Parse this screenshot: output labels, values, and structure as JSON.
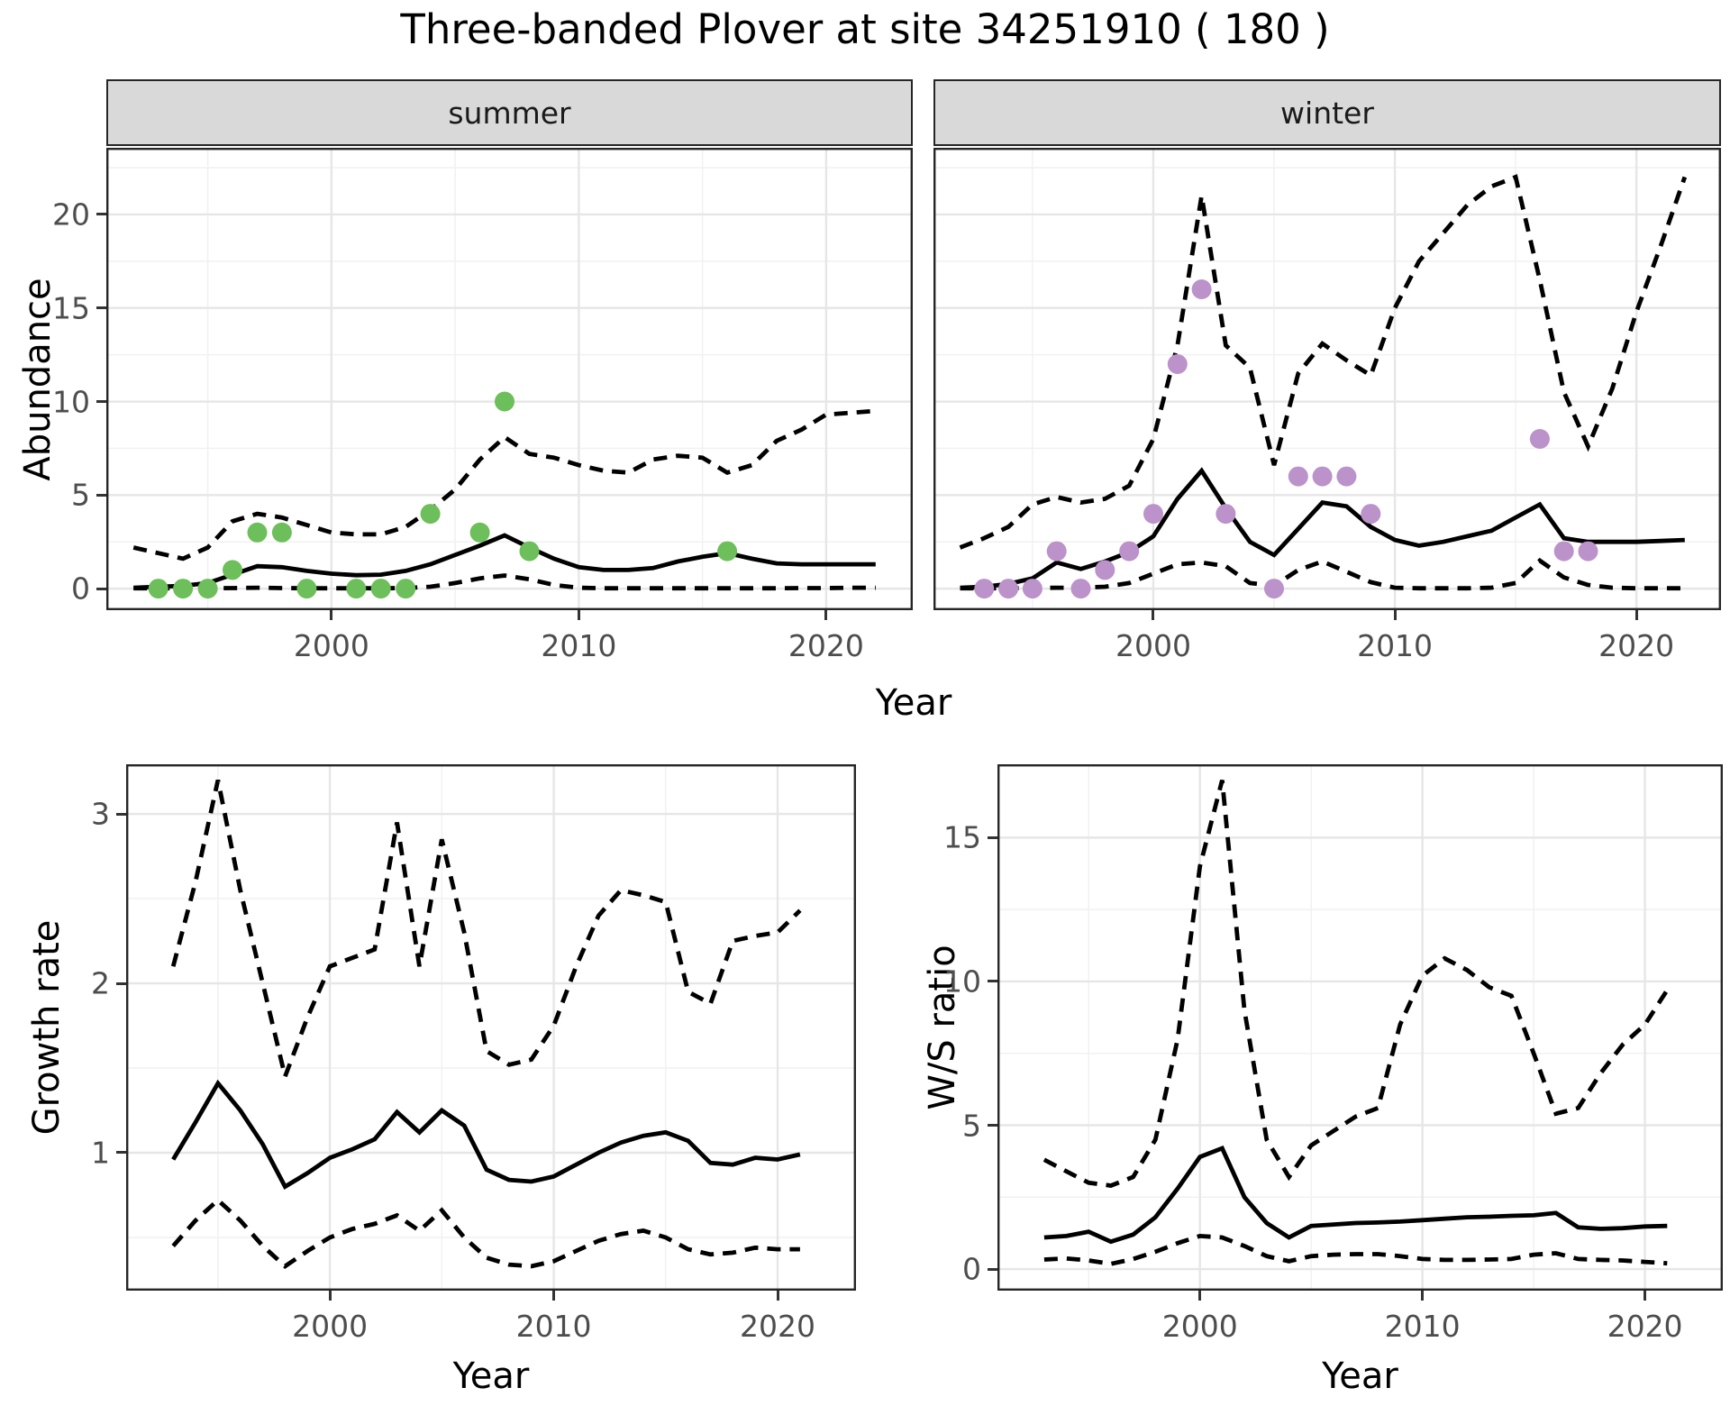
{
  "title": "Three-banded Plover at site 34251910 ( 180 )",
  "colors": {
    "summer_points": "#6cbf5a",
    "winter_points": "#bb92c9",
    "line": "#000000",
    "strip_background": "#d9d9d9",
    "panel_border": "#262626",
    "grid_major": "#e6e6e6",
    "grid_minor": "#f1f1f1",
    "tick_text": "#4d4d4d"
  },
  "facets": {
    "summer": "summer",
    "winter": "winter"
  },
  "axis_titles": {
    "abundance": "Abundance",
    "year_top": "Year",
    "growth": "Growth rate",
    "ws": "W/S ratio",
    "year_bottom_left": "Year",
    "year_bottom_right": "Year"
  },
  "chart_data": [
    {
      "id": "summer",
      "type": "line",
      "title": "summer facet: abundance vs year",
      "xlabel": "Year",
      "ylabel": "Abundance",
      "xlim": [
        1990.9,
        2023.5
      ],
      "ylim": [
        -1.15,
        23.56
      ],
      "xticks": [
        2000,
        2010,
        2020
      ],
      "xticks_minor": [
        1995,
        2005,
        2015
      ],
      "yticks": [
        0,
        5,
        10,
        15,
        20
      ],
      "yticks_minor": [
        2.5,
        7.5,
        12.5,
        17.5,
        22.5
      ],
      "x": [
        1992,
        1993,
        1994,
        1995,
        1996,
        1997,
        1998,
        1999,
        2000,
        2001,
        2002,
        2003,
        2004,
        2005,
        2006,
        2007,
        2008,
        2009,
        2010,
        2011,
        2012,
        2013,
        2014,
        2015,
        2016,
        2017,
        2018,
        2019,
        2020,
        2021,
        2022
      ],
      "series": [
        {
          "name": "mean",
          "style": "solid",
          "values": [
            0.05,
            0.1,
            0.15,
            0.3,
            0.75,
            1.2,
            1.15,
            0.95,
            0.8,
            0.72,
            0.75,
            0.95,
            1.3,
            1.8,
            2.3,
            2.85,
            2.2,
            1.6,
            1.15,
            1.0,
            1.0,
            1.1,
            1.45,
            1.7,
            1.9,
            1.6,
            1.35,
            1.3,
            1.3,
            1.3,
            1.3
          ]
        },
        {
          "name": "upper_ci",
          "style": "dashed",
          "values": [
            2.2,
            1.9,
            1.6,
            2.2,
            3.6,
            4.0,
            3.8,
            3.4,
            3.0,
            2.9,
            2.9,
            3.3,
            4.2,
            5.3,
            6.9,
            8.1,
            7.2,
            7.0,
            6.6,
            6.3,
            6.2,
            6.9,
            7.1,
            7.0,
            6.2,
            6.6,
            7.9,
            8.5,
            9.3,
            9.4,
            9.5
          ]
        },
        {
          "name": "lower_ci",
          "style": "dashed",
          "values": [
            0.02,
            0.02,
            0.02,
            0.02,
            0.03,
            0.05,
            0.03,
            0.02,
            0.02,
            0.02,
            0.02,
            0.03,
            0.1,
            0.3,
            0.55,
            0.7,
            0.5,
            0.2,
            0.05,
            0.02,
            0.02,
            0.02,
            0.02,
            0.02,
            0.02,
            0.02,
            0.02,
            0.03,
            0.03,
            0.05,
            0.05
          ]
        }
      ],
      "points": {
        "color_key": "summer_points",
        "years": [
          1993,
          1994,
          1995,
          1996,
          1997,
          1998,
          1999,
          2001,
          2002,
          2003,
          2004,
          2006,
          2007,
          2008,
          2016
        ],
        "values": [
          0,
          0,
          0,
          1,
          3,
          3,
          0,
          0,
          0,
          0,
          4,
          3,
          10,
          2,
          2
        ]
      }
    },
    {
      "id": "winter",
      "type": "line",
      "title": "winter facet: abundance vs year",
      "xlabel": "Year",
      "ylabel": "Abundance",
      "xlim": [
        1990.9,
        2023.5
      ],
      "ylim": [
        -1.15,
        23.56
      ],
      "xticks": [
        2000,
        2010,
        2020
      ],
      "xticks_minor": [
        1995,
        2005,
        2015
      ],
      "yticks": [
        0,
        5,
        10,
        15,
        20
      ],
      "yticks_minor": [
        2.5,
        7.5,
        12.5,
        17.5,
        22.5
      ],
      "x": [
        1992,
        1993,
        1994,
        1995,
        1996,
        1997,
        1998,
        1999,
        2000,
        2001,
        2002,
        2003,
        2004,
        2005,
        2006,
        2007,
        2008,
        2009,
        2010,
        2011,
        2012,
        2013,
        2014,
        2015,
        2016,
        2017,
        2018,
        2019,
        2020,
        2021,
        2022
      ],
      "series": [
        {
          "name": "mean",
          "style": "solid",
          "values": [
            0.05,
            0.1,
            0.25,
            0.55,
            1.4,
            1.05,
            1.45,
            1.95,
            2.8,
            4.8,
            6.3,
            4.3,
            2.5,
            1.8,
            3.2,
            4.6,
            4.4,
            3.3,
            2.6,
            2.3,
            2.5,
            2.8,
            3.1,
            3.8,
            4.5,
            2.7,
            2.5,
            2.5,
            2.5,
            2.55,
            2.6
          ]
        },
        {
          "name": "upper_ci",
          "style": "dashed",
          "values": [
            2.2,
            2.7,
            3.3,
            4.5,
            4.9,
            4.6,
            4.8,
            5.5,
            8.0,
            13.0,
            21.0,
            13.0,
            11.8,
            6.6,
            11.5,
            13.1,
            12.2,
            11.4,
            15.0,
            17.5,
            19.0,
            20.5,
            21.5,
            22.0,
            16.5,
            10.5,
            7.6,
            10.7,
            14.8,
            18.3,
            22.0
          ]
        },
        {
          "name": "lower_ci",
          "style": "dashed",
          "values": [
            0.02,
            0.02,
            0.02,
            0.03,
            0.05,
            0.05,
            0.1,
            0.3,
            0.8,
            1.3,
            1.4,
            1.2,
            0.3,
            0.15,
            1.0,
            1.45,
            0.9,
            0.35,
            0.05,
            0.02,
            0.02,
            0.02,
            0.05,
            0.3,
            1.5,
            0.6,
            0.2,
            0.05,
            0.02,
            0.02,
            0.02
          ]
        }
      ],
      "points": {
        "color_key": "winter_points",
        "years": [
          1993,
          1994,
          1995,
          1996,
          1997,
          1998,
          1999,
          2000,
          2001,
          2002,
          2003,
          2005,
          2006,
          2007,
          2008,
          2009,
          2016,
          2017,
          2018
        ],
        "values": [
          0,
          0,
          0,
          2,
          0,
          1,
          2,
          4,
          12,
          16,
          4,
          0,
          6,
          6,
          6,
          4,
          8,
          2,
          2
        ]
      }
    },
    {
      "id": "growth",
      "type": "line",
      "title": "growth rate vs year",
      "xlabel": "Year",
      "ylabel": "Growth rate",
      "xlim": [
        1990.9,
        2023.5
      ],
      "ylim": [
        0.186,
        3.293
      ],
      "xticks": [
        2000,
        2010,
        2020
      ],
      "xticks_minor": [
        1995,
        2005,
        2015
      ],
      "yticks": [
        1,
        2,
        3
      ],
      "yticks_minor": [
        0.5,
        1.5,
        2.5
      ],
      "x": [
        1993,
        1994,
        1995,
        1996,
        1997,
        1998,
        1999,
        2000,
        2001,
        2002,
        2003,
        2004,
        2005,
        2006,
        2007,
        2008,
        2009,
        2010,
        2011,
        2012,
        2013,
        2014,
        2015,
        2016,
        2017,
        2018,
        2019,
        2020,
        2021
      ],
      "series": [
        {
          "name": "mean",
          "style": "solid",
          "values": [
            0.96,
            1.18,
            1.41,
            1.25,
            1.05,
            0.8,
            0.88,
            0.97,
            1.02,
            1.08,
            1.24,
            1.12,
            1.25,
            1.16,
            0.9,
            0.84,
            0.83,
            0.86,
            0.93,
            1.0,
            1.06,
            1.1,
            1.12,
            1.07,
            0.94,
            0.93,
            0.97,
            0.96,
            0.99
          ]
        },
        {
          "name": "upper_ci",
          "style": "dashed",
          "values": [
            2.1,
            2.6,
            3.2,
            2.55,
            2.0,
            1.45,
            1.8,
            2.1,
            2.15,
            2.2,
            2.95,
            2.1,
            2.85,
            2.3,
            1.6,
            1.52,
            1.55,
            1.75,
            2.1,
            2.4,
            2.55,
            2.52,
            2.48,
            1.95,
            1.88,
            2.25,
            2.28,
            2.3,
            2.43
          ]
        },
        {
          "name": "lower_ci",
          "style": "dashed",
          "values": [
            0.45,
            0.6,
            0.72,
            0.6,
            0.45,
            0.33,
            0.42,
            0.5,
            0.55,
            0.58,
            0.63,
            0.54,
            0.66,
            0.5,
            0.38,
            0.34,
            0.33,
            0.36,
            0.42,
            0.48,
            0.52,
            0.54,
            0.5,
            0.43,
            0.4,
            0.41,
            0.44,
            0.43,
            0.43
          ]
        }
      ],
      "points": null
    },
    {
      "id": "ws",
      "type": "line",
      "title": "winter/summer ratio vs year",
      "xlabel": "Year",
      "ylabel": "W/S ratio",
      "xlim": [
        1990.9,
        2023.5
      ],
      "ylim": [
        -0.75,
        17.55
      ],
      "xticks": [
        2000,
        2010,
        2020
      ],
      "xticks_minor": [
        1995,
        2005,
        2015
      ],
      "yticks": [
        0,
        5,
        10,
        15
      ],
      "yticks_minor": [
        2.5,
        7.5,
        12.5
      ],
      "x": [
        1993,
        1994,
        1995,
        1996,
        1997,
        1998,
        1999,
        2000,
        2001,
        2002,
        2003,
        2004,
        2005,
        2006,
        2007,
        2008,
        2009,
        2010,
        2011,
        2012,
        2013,
        2014,
        2015,
        2016,
        2017,
        2018,
        2019,
        2020,
        2021
      ],
      "series": [
        {
          "name": "mean",
          "style": "solid",
          "values": [
            1.1,
            1.15,
            1.3,
            0.95,
            1.2,
            1.8,
            2.8,
            3.9,
            4.2,
            2.5,
            1.6,
            1.1,
            1.5,
            1.55,
            1.6,
            1.62,
            1.65,
            1.7,
            1.75,
            1.8,
            1.82,
            1.85,
            1.87,
            1.95,
            1.45,
            1.4,
            1.42,
            1.48,
            1.5
          ]
        },
        {
          "name": "upper_ci",
          "style": "dashed",
          "values": [
            3.8,
            3.4,
            3.0,
            2.9,
            3.2,
            4.5,
            8.0,
            14.0,
            17.0,
            9.0,
            4.5,
            3.2,
            4.3,
            4.8,
            5.3,
            5.6,
            8.5,
            10.2,
            10.8,
            10.4,
            9.8,
            9.5,
            7.5,
            5.4,
            5.6,
            6.8,
            7.8,
            8.5,
            9.7
          ]
        },
        {
          "name": "lower_ci",
          "style": "dashed",
          "values": [
            0.33,
            0.37,
            0.3,
            0.18,
            0.35,
            0.6,
            0.9,
            1.15,
            1.1,
            0.8,
            0.45,
            0.27,
            0.45,
            0.5,
            0.52,
            0.52,
            0.45,
            0.35,
            0.32,
            0.32,
            0.33,
            0.35,
            0.5,
            0.55,
            0.35,
            0.32,
            0.3,
            0.25,
            0.2
          ]
        }
      ],
      "points": null
    }
  ]
}
